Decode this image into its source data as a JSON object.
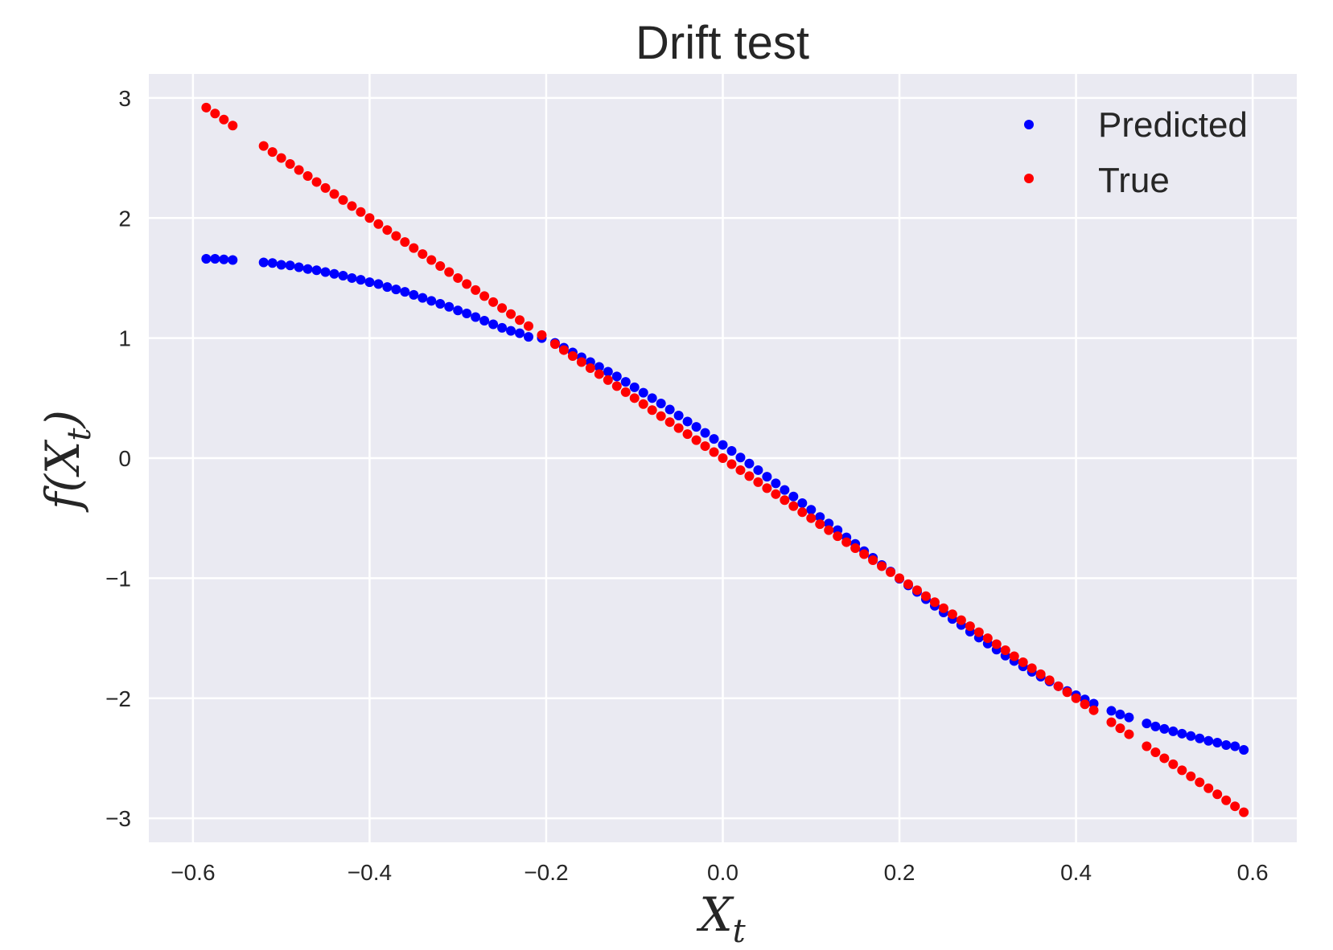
{
  "chart_data": {
    "type": "scatter",
    "title": "Drift test",
    "xlabel": "X",
    "xlabel_sub": "t",
    "ylabel_prefix": "f(X",
    "ylabel_sub": "t",
    "ylabel_suffix": ")",
    "xlim": [
      -0.65,
      0.65
    ],
    "ylim": [
      -3.2,
      3.2
    ],
    "xticks": [
      -0.6,
      -0.4,
      -0.2,
      0.0,
      0.2,
      0.4,
      0.6
    ],
    "xtick_labels": [
      "−0.6",
      "−0.4",
      "−0.2",
      "0.0",
      "0.2",
      "0.4",
      "0.6"
    ],
    "yticks": [
      3,
      2,
      1,
      0,
      -1,
      -2,
      -3
    ],
    "ytick_labels": [
      "3",
      "2",
      "1",
      "0",
      "−1",
      "−2",
      "−3"
    ],
    "grid": true,
    "legend_position": "top-right",
    "background": "#eaeaf2",
    "series": [
      {
        "name": "Predicted",
        "color": "#0000ff",
        "x": [
          -0.585,
          -0.575,
          -0.565,
          -0.555,
          -0.52,
          -0.51,
          -0.5,
          -0.49,
          -0.48,
          -0.47,
          -0.46,
          -0.45,
          -0.44,
          -0.43,
          -0.42,
          -0.41,
          -0.4,
          -0.39,
          -0.38,
          -0.37,
          -0.36,
          -0.35,
          -0.34,
          -0.33,
          -0.32,
          -0.31,
          -0.3,
          -0.29,
          -0.28,
          -0.27,
          -0.26,
          -0.25,
          -0.24,
          -0.23,
          -0.22,
          -0.205,
          -0.19,
          -0.18,
          -0.17,
          -0.16,
          -0.15,
          -0.14,
          -0.13,
          -0.12,
          -0.11,
          -0.1,
          -0.09,
          -0.08,
          -0.07,
          -0.06,
          -0.05,
          -0.04,
          -0.03,
          -0.02,
          -0.01,
          0.0,
          0.01,
          0.02,
          0.03,
          0.04,
          0.05,
          0.06,
          0.07,
          0.08,
          0.09,
          0.1,
          0.11,
          0.12,
          0.13,
          0.14,
          0.15,
          0.16,
          0.17,
          0.18,
          0.19,
          0.2,
          0.21,
          0.22,
          0.23,
          0.24,
          0.25,
          0.26,
          0.27,
          0.28,
          0.29,
          0.3,
          0.31,
          0.32,
          0.33,
          0.34,
          0.35,
          0.36,
          0.37,
          0.38,
          0.39,
          0.4,
          0.41,
          0.42,
          0.44,
          0.45,
          0.46,
          0.48,
          0.49,
          0.5,
          0.51,
          0.52,
          0.53,
          0.54,
          0.55,
          0.56,
          0.57,
          0.58,
          0.59
        ],
        "y": [
          1.66,
          1.66,
          1.655,
          1.65,
          1.63,
          1.625,
          1.61,
          1.605,
          1.59,
          1.575,
          1.565,
          1.55,
          1.535,
          1.52,
          1.5,
          1.485,
          1.465,
          1.45,
          1.425,
          1.405,
          1.385,
          1.36,
          1.335,
          1.31,
          1.285,
          1.26,
          1.23,
          1.205,
          1.175,
          1.145,
          1.115,
          1.085,
          1.06,
          1.04,
          1.01,
          1.0,
          0.96,
          0.92,
          0.88,
          0.84,
          0.8,
          0.76,
          0.72,
          0.68,
          0.635,
          0.59,
          0.545,
          0.5,
          0.455,
          0.405,
          0.355,
          0.305,
          0.26,
          0.21,
          0.16,
          0.11,
          0.06,
          0.005,
          -0.045,
          -0.1,
          -0.155,
          -0.21,
          -0.265,
          -0.32,
          -0.375,
          -0.43,
          -0.49,
          -0.545,
          -0.6,
          -0.66,
          -0.715,
          -0.775,
          -0.83,
          -0.89,
          -0.945,
          -1.005,
          -1.06,
          -1.115,
          -1.175,
          -1.23,
          -1.285,
          -1.34,
          -1.39,
          -1.445,
          -1.495,
          -1.545,
          -1.595,
          -1.645,
          -1.69,
          -1.735,
          -1.78,
          -1.82,
          -1.86,
          -1.9,
          -1.94,
          -1.975,
          -2.01,
          -2.045,
          -2.105,
          -2.135,
          -2.16,
          -2.21,
          -2.235,
          -2.255,
          -2.275,
          -2.295,
          -2.315,
          -2.335,
          -2.355,
          -2.37,
          -2.39,
          -2.4,
          -2.43
        ]
      },
      {
        "name": "True",
        "color": "#ff0000",
        "x": [
          -0.585,
          -0.575,
          -0.565,
          -0.555,
          -0.52,
          -0.51,
          -0.5,
          -0.49,
          -0.48,
          -0.47,
          -0.46,
          -0.45,
          -0.44,
          -0.43,
          -0.42,
          -0.41,
          -0.4,
          -0.39,
          -0.38,
          -0.37,
          -0.36,
          -0.35,
          -0.34,
          -0.33,
          -0.32,
          -0.31,
          -0.3,
          -0.29,
          -0.28,
          -0.27,
          -0.26,
          -0.25,
          -0.24,
          -0.23,
          -0.22,
          -0.205,
          -0.19,
          -0.18,
          -0.17,
          -0.16,
          -0.15,
          -0.14,
          -0.13,
          -0.12,
          -0.11,
          -0.1,
          -0.09,
          -0.08,
          -0.07,
          -0.06,
          -0.05,
          -0.04,
          -0.03,
          -0.02,
          -0.01,
          0.0,
          0.01,
          0.02,
          0.03,
          0.04,
          0.05,
          0.06,
          0.07,
          0.08,
          0.09,
          0.1,
          0.11,
          0.12,
          0.13,
          0.14,
          0.15,
          0.16,
          0.17,
          0.18,
          0.19,
          0.2,
          0.21,
          0.22,
          0.23,
          0.24,
          0.25,
          0.26,
          0.27,
          0.28,
          0.29,
          0.3,
          0.31,
          0.32,
          0.33,
          0.34,
          0.35,
          0.36,
          0.37,
          0.38,
          0.39,
          0.4,
          0.41,
          0.42,
          0.44,
          0.45,
          0.46,
          0.48,
          0.49,
          0.5,
          0.51,
          0.52,
          0.53,
          0.54,
          0.55,
          0.56,
          0.57,
          0.58,
          0.59
        ],
        "y": [
          2.92,
          2.87,
          2.82,
          2.77,
          2.6,
          2.55,
          2.5,
          2.45,
          2.4,
          2.35,
          2.3,
          2.25,
          2.2,
          2.15,
          2.1,
          2.05,
          2.0,
          1.95,
          1.9,
          1.85,
          1.8,
          1.75,
          1.7,
          1.65,
          1.6,
          1.55,
          1.5,
          1.45,
          1.4,
          1.35,
          1.3,
          1.25,
          1.2,
          1.15,
          1.1,
          1.025,
          0.95,
          0.9,
          0.85,
          0.8,
          0.75,
          0.7,
          0.65,
          0.6,
          0.55,
          0.5,
          0.45,
          0.4,
          0.35,
          0.3,
          0.25,
          0.2,
          0.15,
          0.1,
          0.05,
          0.0,
          -0.05,
          -0.1,
          -0.15,
          -0.2,
          -0.25,
          -0.3,
          -0.35,
          -0.4,
          -0.45,
          -0.5,
          -0.55,
          -0.6,
          -0.65,
          -0.7,
          -0.75,
          -0.8,
          -0.85,
          -0.9,
          -0.95,
          -1.0,
          -1.05,
          -1.1,
          -1.15,
          -1.2,
          -1.25,
          -1.3,
          -1.35,
          -1.4,
          -1.45,
          -1.5,
          -1.55,
          -1.6,
          -1.65,
          -1.7,
          -1.75,
          -1.8,
          -1.85,
          -1.9,
          -1.95,
          -2.0,
          -2.05,
          -2.1,
          -2.2,
          -2.25,
          -2.3,
          -2.4,
          -2.45,
          -2.5,
          -2.55,
          -2.6,
          -2.65,
          -2.7,
          -2.75,
          -2.8,
          -2.85,
          -2.9,
          -2.95
        ]
      }
    ]
  }
}
